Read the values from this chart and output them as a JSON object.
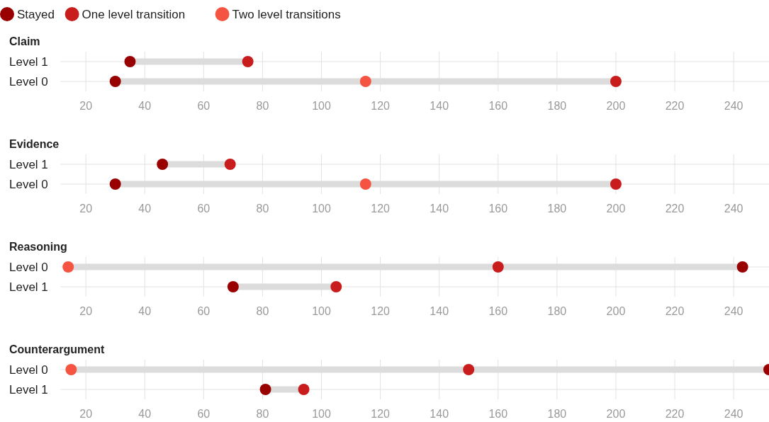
{
  "chart_data": [
    {
      "type": "scatter",
      "title": "Claim",
      "orientation": "horizontal",
      "categories": [
        "Level 1",
        "Level 0"
      ],
      "legend": "top left",
      "marker": "circle",
      "grid": true,
      "xlim": [
        11.3,
        252
      ],
      "xticks": [
        20,
        40,
        60,
        80,
        100,
        120,
        140,
        160,
        180,
        200,
        220,
        240
      ],
      "series": [
        {
          "name": "Stayed",
          "color": "#990000",
          "values": [
            35,
            30
          ]
        },
        {
          "name": "One level transition",
          "color": "#c91d1d",
          "values": [
            75,
            200
          ]
        },
        {
          "name": "Two level transitions",
          "color": "#f55442",
          "values": [
            null,
            115
          ]
        }
      ]
    },
    {
      "type": "scatter",
      "title": "Evidence",
      "orientation": "horizontal",
      "categories": [
        "Level 1",
        "Level 0"
      ],
      "marker": "circle",
      "grid": true,
      "xlim": [
        11.3,
        252
      ],
      "xticks": [
        20,
        40,
        60,
        80,
        100,
        120,
        140,
        160,
        180,
        200,
        220,
        240
      ],
      "series": [
        {
          "color": "#990000",
          "values": [
            46,
            30
          ]
        },
        {
          "color": "#c91d1d",
          "values": [
            69,
            200
          ]
        },
        {
          "color": "#f55442",
          "values": [
            null,
            115
          ]
        }
      ]
    },
    {
      "type": "scatter",
      "title": "Reasoning",
      "orientation": "horizontal",
      "categories": [
        "Level 0",
        "Level 1"
      ],
      "marker": "circle",
      "grid": true,
      "xlim": [
        11.3,
        252
      ],
      "xticks": [
        20,
        40,
        60,
        80,
        100,
        120,
        140,
        160,
        180,
        200,
        220,
        240
      ],
      "series": [
        {
          "color": "#990000",
          "values": [
            243,
            70
          ]
        },
        {
          "color": "#c91d1d",
          "values": [
            160,
            105
          ]
        },
        {
          "color": "#f55442",
          "values": [
            14,
            null
          ]
        }
      ]
    },
    {
      "type": "scatter",
      "title": "Counterargument",
      "orientation": "horizontal",
      "categories": [
        "Level 0",
        "Level 1"
      ],
      "marker": "circle",
      "grid": true,
      "xlim": [
        11.3,
        252
      ],
      "xticks": [
        20,
        40,
        60,
        80,
        100,
        120,
        140,
        160,
        180,
        200,
        220,
        240
      ],
      "series": [
        {
          "color": "#990000",
          "values": [
            252,
            81
          ]
        },
        {
          "color": "#c91d1d",
          "values": [
            150,
            94
          ]
        },
        {
          "color": "#f55442",
          "values": [
            15,
            null
          ]
        }
      ]
    }
  ]
}
